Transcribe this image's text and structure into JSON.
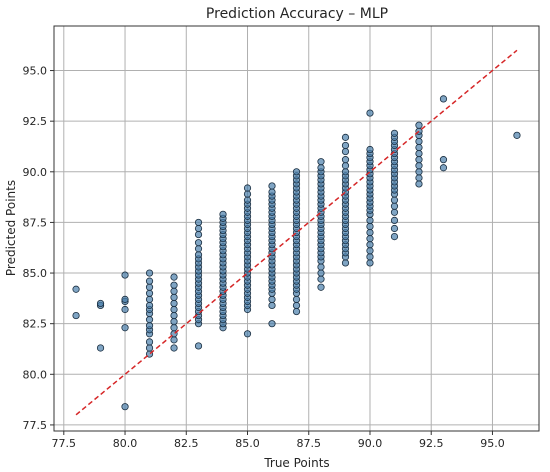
{
  "chart_data": {
    "type": "scatter",
    "title": "Prediction Accuracy – MLP",
    "xlabel": "True Points",
    "ylabel": "Predicted Points",
    "xlim": [
      77.1,
      96.9
    ],
    "ylim": [
      77.2,
      97.2
    ],
    "xticks": [
      "77.5",
      "80.0",
      "82.5",
      "85.0",
      "87.5",
      "90.0",
      "92.5",
      "95.0"
    ],
    "yticks": [
      "77.5",
      "80.0",
      "82.5",
      "85.0",
      "87.5",
      "90.0",
      "92.5",
      "95.0"
    ],
    "grid": true,
    "colors": {
      "point_fill": "#4a7fab",
      "point_edge": "#1a2e40",
      "reference_line": "#d62728"
    },
    "reference_line": {
      "x": [
        78,
        96
      ],
      "y": [
        78,
        96
      ],
      "style": "dashed"
    },
    "columns": [
      {
        "x": 78,
        "y": [
          82.9,
          84.2
        ]
      },
      {
        "x": 79,
        "y": [
          81.3,
          83.4,
          83.5
        ]
      },
      {
        "x": 80,
        "y": [
          78.4,
          82.3,
          83.2,
          83.6,
          83.7,
          84.9
        ]
      },
      {
        "x": 81,
        "y": [
          81.0,
          81.3,
          81.6,
          82.0,
          82.2,
          82.4,
          82.7,
          83.0,
          83.2,
          83.4,
          83.7,
          84.0,
          84.3,
          84.6,
          85.0
        ]
      },
      {
        "x": 82,
        "y": [
          81.3,
          81.7,
          82.0,
          82.3,
          82.6,
          82.9,
          83.2,
          83.5,
          83.8,
          84.1,
          84.4,
          84.8
        ]
      },
      {
        "x": 83,
        "y": [
          81.4,
          82.5,
          82.7,
          82.9,
          83.1,
          83.3,
          83.5,
          83.7,
          83.9,
          84.1,
          84.3,
          84.5,
          84.7,
          84.9,
          85.1,
          85.3,
          85.5,
          85.7,
          85.9,
          86.2,
          86.5,
          86.9,
          87.2,
          87.5
        ]
      },
      {
        "x": 84,
        "y": [
          82.3,
          82.5,
          82.7,
          82.9,
          83.1,
          83.3,
          83.5,
          83.7,
          83.9,
          84.1,
          84.3,
          84.5,
          84.7,
          84.9,
          85.1,
          85.3,
          85.5,
          85.7,
          85.9,
          86.1,
          86.3,
          86.5,
          86.7,
          86.9,
          87.1,
          87.3,
          87.5,
          87.7,
          87.9
        ]
      },
      {
        "x": 85,
        "y": [
          82.0,
          83.2,
          83.4,
          83.6,
          83.8,
          84.0,
          84.2,
          84.4,
          84.6,
          84.8,
          85.0,
          85.2,
          85.4,
          85.6,
          85.8,
          86.0,
          86.2,
          86.4,
          86.6,
          86.8,
          87.0,
          87.2,
          87.4,
          87.6,
          87.8,
          88.0,
          88.2,
          88.4,
          88.6,
          88.9,
          89.2
        ]
      },
      {
        "x": 86,
        "y": [
          82.5,
          83.4,
          83.7,
          84.0,
          84.2,
          84.4,
          84.6,
          84.8,
          85.0,
          85.2,
          85.4,
          85.6,
          85.8,
          86.0,
          86.2,
          86.4,
          86.6,
          86.8,
          87.0,
          87.2,
          87.4,
          87.6,
          87.8,
          88.0,
          88.2,
          88.4,
          88.6,
          88.8,
          89.0,
          89.3
        ]
      },
      {
        "x": 87,
        "y": [
          83.1,
          83.4,
          83.7,
          84.0,
          84.2,
          84.4,
          84.6,
          84.8,
          85.0,
          85.2,
          85.4,
          85.6,
          85.8,
          86.0,
          86.2,
          86.4,
          86.6,
          86.8,
          87.0,
          87.2,
          87.4,
          87.6,
          87.8,
          88.0,
          88.2,
          88.4,
          88.6,
          88.8,
          89.0,
          89.2,
          89.4,
          89.6,
          89.8,
          90.0
        ]
      },
      {
        "x": 88,
        "y": [
          84.3,
          84.7,
          85.0,
          85.3,
          85.6,
          85.8,
          86.0,
          86.2,
          86.4,
          86.6,
          86.8,
          87.0,
          87.2,
          87.4,
          87.6,
          87.8,
          88.0,
          88.2,
          88.4,
          88.6,
          88.8,
          89.0,
          89.2,
          89.4,
          89.6,
          89.8,
          90.0,
          90.2,
          90.5
        ]
      },
      {
        "x": 89,
        "y": [
          85.5,
          85.8,
          86.0,
          86.2,
          86.4,
          86.6,
          86.8,
          87.0,
          87.2,
          87.4,
          87.6,
          87.8,
          88.0,
          88.2,
          88.4,
          88.6,
          88.8,
          89.0,
          89.2,
          89.4,
          89.6,
          89.8,
          90.0,
          90.3,
          90.6,
          91.0,
          91.3,
          91.7
        ]
      },
      {
        "x": 90,
        "y": [
          85.5,
          85.8,
          86.1,
          86.4,
          86.7,
          87.0,
          87.3,
          87.6,
          87.9,
          88.1,
          88.3,
          88.5,
          88.7,
          88.9,
          89.1,
          89.3,
          89.5,
          89.7,
          89.9,
          90.1,
          90.3,
          90.5,
          90.7,
          90.9,
          91.1,
          92.9
        ]
      },
      {
        "x": 91,
        "y": [
          86.8,
          87.2,
          87.6,
          88.0,
          88.3,
          88.6,
          88.9,
          89.1,
          89.3,
          89.5,
          89.7,
          89.9,
          90.1,
          90.3,
          90.5,
          90.7,
          90.9,
          91.1,
          91.3,
          91.5,
          91.7,
          91.9
        ]
      },
      {
        "x": 92,
        "y": [
          89.4,
          89.7,
          90.0,
          90.3,
          90.6,
          90.9,
          91.2,
          91.5,
          91.8,
          92.0,
          92.3
        ]
      },
      {
        "x": 93,
        "y": [
          90.2,
          90.6,
          93.6
        ]
      },
      {
        "x": 96,
        "y": [
          91.8
        ]
      }
    ]
  }
}
